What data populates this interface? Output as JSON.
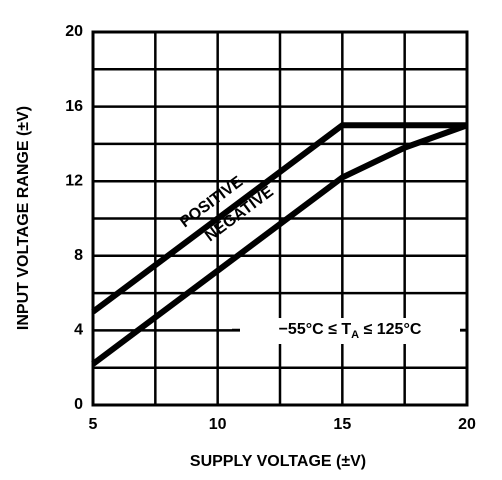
{
  "chart_data": {
    "type": "line",
    "x_label": "SUPPLY VOLTAGE (±V)",
    "y_label": "INPUT VOLTAGE RANGE (±V)",
    "xlim": [
      5,
      20
    ],
    "ylim": [
      0,
      20
    ],
    "xticks": [
      5,
      10,
      15,
      20
    ],
    "yticks": [
      0,
      4,
      8,
      12,
      16,
      20
    ],
    "minor_xticks": [
      7.5,
      12.5,
      17.5
    ],
    "minor_yticks": [
      2,
      6,
      10,
      14,
      18
    ],
    "grid": true,
    "series": [
      {
        "name": "POSITIVE",
        "color": "#000000",
        "x": [
          5,
          15,
          20
        ],
        "values": [
          5,
          15,
          15
        ]
      },
      {
        "name": "NEGATIVE",
        "color": "#000000",
        "x": [
          5,
          15,
          17.5,
          20
        ],
        "values": [
          2.2,
          12.2,
          13.8,
          15
        ]
      }
    ],
    "annotation": {
      "prefix": "−55°C ≤ T",
      "sub": "A",
      "suffix": " ≤ 125°C"
    }
  }
}
